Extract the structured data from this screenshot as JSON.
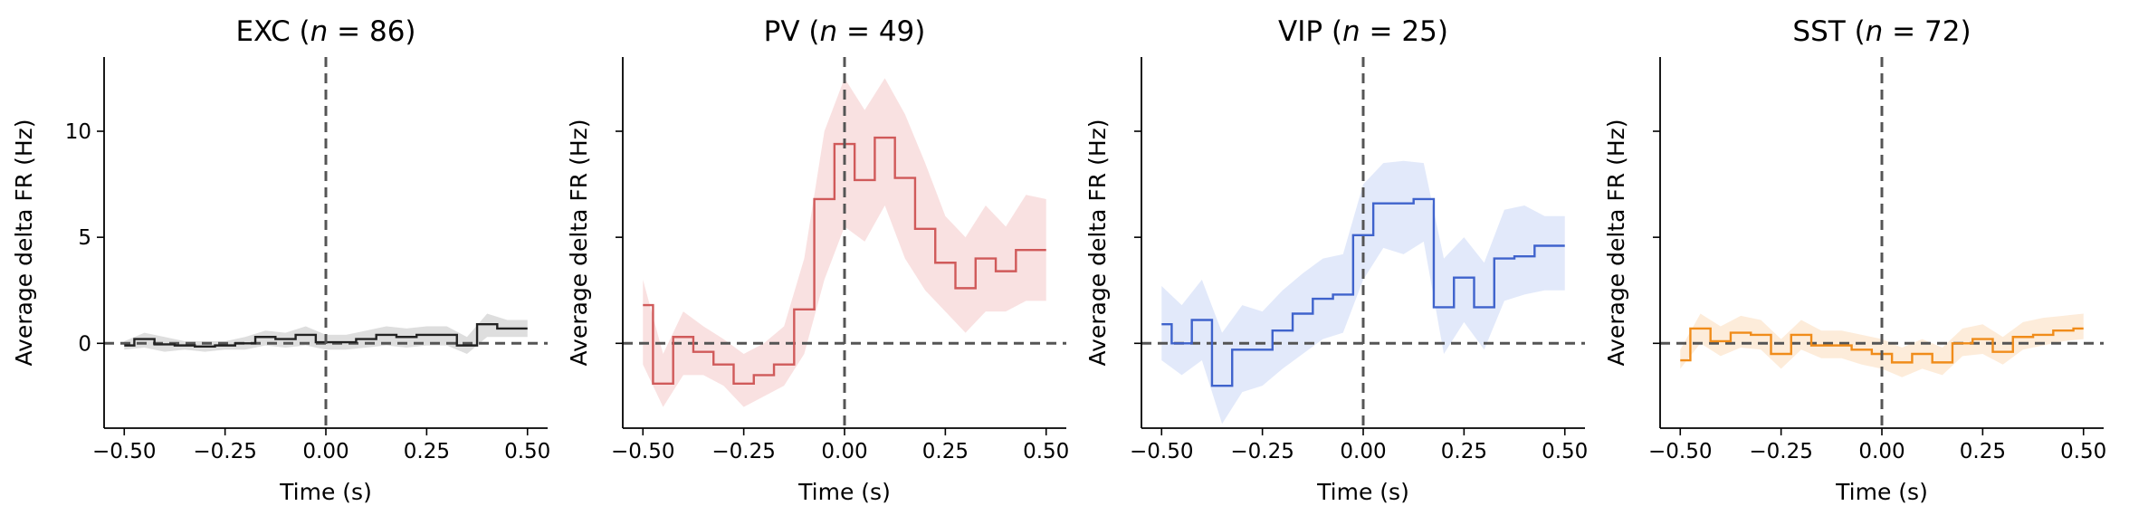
{
  "chart_data": [
    {
      "type": "line",
      "title_prefix": "EXC (",
      "title_var": "n",
      "title_eq": " = 86)",
      "xlabel": "Time (s)",
      "ylabel": "Average delta FR (Hz)",
      "xlim": [
        -0.55,
        0.55
      ],
      "ylim": [
        -4,
        13.5
      ],
      "xticks": [
        -0.5,
        -0.25,
        0.0,
        0.25,
        0.5
      ],
      "xtick_labels": [
        "−0.50",
        "−0.25",
        "0.00",
        "0.25",
        "0.50"
      ],
      "yticks": [
        0,
        5,
        10
      ],
      "ytick_labels": [
        "0",
        "5",
        "10"
      ],
      "show_ytick_labels": true,
      "color": "#222222",
      "fill_color": "#d8d8d8",
      "x": [
        -0.5,
        -0.45,
        -0.4,
        -0.35,
        -0.3,
        -0.25,
        -0.2,
        -0.15,
        -0.1,
        -0.05,
        0.0,
        0.05,
        0.1,
        0.15,
        0.2,
        0.25,
        0.3,
        0.35,
        0.4,
        0.45,
        0.5
      ],
      "y": [
        -0.1,
        0.2,
        -0.05,
        -0.1,
        -0.15,
        -0.1,
        0.0,
        0.3,
        0.2,
        0.4,
        0.05,
        0.05,
        0.2,
        0.4,
        0.3,
        0.4,
        0.4,
        -0.1,
        0.9,
        0.7,
        0.7
      ],
      "lower": [
        -0.3,
        -0.2,
        -0.4,
        -0.3,
        -0.4,
        -0.3,
        -0.3,
        -0.1,
        -0.2,
        -0.1,
        -0.3,
        -0.3,
        -0.2,
        -0.1,
        -0.2,
        -0.1,
        -0.1,
        -0.5,
        0.3,
        0.3,
        0.3
      ],
      "upper": [
        0.1,
        0.5,
        0.3,
        0.1,
        0.1,
        0.1,
        0.3,
        0.6,
        0.5,
        0.8,
        0.4,
        0.4,
        0.6,
        0.8,
        0.7,
        0.8,
        0.8,
        0.3,
        1.4,
        1.1,
        1.1
      ]
    },
    {
      "type": "line",
      "title_prefix": "PV (",
      "title_var": "n",
      "title_eq": " = 49)",
      "xlabel": "Time (s)",
      "ylabel": "Average delta FR (Hz)",
      "xlim": [
        -0.55,
        0.55
      ],
      "ylim": [
        -4,
        13.5
      ],
      "xticks": [
        -0.5,
        -0.25,
        0.0,
        0.25,
        0.5
      ],
      "xtick_labels": [
        "−0.50",
        "−0.25",
        "0.00",
        "0.25",
        "0.50"
      ],
      "yticks": [
        0,
        5,
        10
      ],
      "ytick_labels": [
        "0",
        "5",
        "10"
      ],
      "show_ytick_labels": false,
      "color": "#d05a5a",
      "fill_color": "#f8dcdc",
      "x": [
        -0.5,
        -0.45,
        -0.4,
        -0.35,
        -0.3,
        -0.25,
        -0.2,
        -0.15,
        -0.1,
        -0.05,
        0.0,
        0.05,
        0.1,
        0.15,
        0.2,
        0.25,
        0.3,
        0.35,
        0.4,
        0.45,
        0.5
      ],
      "y": [
        1.8,
        -1.9,
        0.3,
        -0.4,
        -1.0,
        -1.9,
        -1.5,
        -1.0,
        1.6,
        6.8,
        9.4,
        7.7,
        9.7,
        7.8,
        5.4,
        3.8,
        2.6,
        4.0,
        3.4,
        4.4,
        4.4
      ],
      "lower": [
        -1.0,
        -3.0,
        -1.5,
        -1.5,
        -2.0,
        -3.0,
        -2.5,
        -2.0,
        -0.5,
        3.0,
        5.5,
        4.8,
        6.5,
        4.0,
        2.5,
        1.5,
        0.5,
        1.5,
        1.5,
        2.0,
        2.0
      ],
      "upper": [
        3.0,
        -0.5,
        1.5,
        0.8,
        0.2,
        -0.5,
        0.0,
        0.8,
        4.0,
        10.0,
        12.5,
        11.0,
        12.5,
        10.8,
        8.5,
        6.0,
        5.0,
        6.5,
        5.5,
        7.0,
        6.8
      ]
    },
    {
      "type": "line",
      "title_prefix": "VIP (",
      "title_var": "n",
      "title_eq": " = 25)",
      "xlabel": "Time (s)",
      "ylabel": "Average delta FR (Hz)",
      "xlim": [
        -0.55,
        0.55
      ],
      "ylim": [
        -4,
        13.5
      ],
      "xticks": [
        -0.5,
        -0.25,
        0.0,
        0.25,
        0.5
      ],
      "xtick_labels": [
        "−0.50",
        "−0.25",
        "0.00",
        "0.25",
        "0.50"
      ],
      "yticks": [
        0,
        5,
        10
      ],
      "ytick_labels": [
        "0",
        "5",
        "10"
      ],
      "show_ytick_labels": false,
      "color": "#3f63cc",
      "fill_color": "#dde5f9",
      "x": [
        -0.5,
        -0.45,
        -0.4,
        -0.35,
        -0.3,
        -0.25,
        -0.2,
        -0.15,
        -0.1,
        -0.05,
        0.0,
        0.05,
        0.1,
        0.15,
        0.2,
        0.25,
        0.3,
        0.35,
        0.4,
        0.45,
        0.5
      ],
      "y": [
        0.9,
        0.0,
        1.1,
        -2.0,
        -0.3,
        -0.3,
        0.6,
        1.4,
        2.1,
        2.3,
        5.1,
        6.6,
        6.6,
        6.8,
        1.7,
        3.1,
        1.7,
        4.0,
        4.1,
        4.6,
        4.6
      ],
      "lower": [
        -0.8,
        -1.5,
        -0.8,
        -3.8,
        -2.3,
        -2.0,
        -1.2,
        -0.5,
        0.2,
        0.5,
        3.0,
        4.5,
        4.2,
        4.8,
        -0.5,
        1.0,
        -0.3,
        2.0,
        2.3,
        2.5,
        2.5
      ],
      "upper": [
        2.7,
        1.8,
        3.0,
        0.5,
        1.8,
        1.5,
        2.5,
        3.3,
        4.0,
        4.2,
        7.5,
        8.5,
        8.6,
        8.5,
        4.0,
        5.0,
        3.8,
        6.3,
        6.5,
        6.0,
        6.0
      ]
    },
    {
      "type": "line",
      "title_prefix": "SST (",
      "title_var": "n",
      "title_eq": " = 72)",
      "xlabel": "Time (s)",
      "ylabel": "Average delta FR (Hz)",
      "xlim": [
        -0.55,
        0.55
      ],
      "ylim": [
        -4,
        13.5
      ],
      "xticks": [
        -0.5,
        -0.25,
        0.0,
        0.25,
        0.5
      ],
      "xtick_labels": [
        "−0.50",
        "−0.25",
        "0.00",
        "0.25",
        "0.50"
      ],
      "yticks": [
        0,
        5,
        10
      ],
      "ytick_labels": [
        "0",
        "5",
        "10"
      ],
      "show_ytick_labels": false,
      "color": "#f08c1a",
      "fill_color": "#fde9d3",
      "x": [
        -0.5,
        -0.45,
        -0.4,
        -0.35,
        -0.3,
        -0.25,
        -0.2,
        -0.15,
        -0.1,
        -0.05,
        0.0,
        0.05,
        0.1,
        0.15,
        0.2,
        0.25,
        0.3,
        0.35,
        0.4,
        0.45,
        0.5
      ],
      "y": [
        -0.8,
        0.7,
        0.1,
        0.5,
        0.4,
        -0.5,
        0.4,
        -0.1,
        -0.1,
        -0.3,
        -0.5,
        -0.9,
        -0.5,
        -0.9,
        0.0,
        0.2,
        -0.4,
        0.3,
        0.4,
        0.6,
        0.7
      ],
      "lower": [
        -1.2,
        0.0,
        -0.6,
        -0.2,
        -0.3,
        -1.2,
        -0.3,
        -0.7,
        -0.7,
        -1.0,
        -1.2,
        -1.6,
        -1.2,
        -1.5,
        -0.6,
        -0.5,
        -1.0,
        -0.3,
        -0.1,
        0.1,
        0.2
      ],
      "upper": [
        -0.3,
        1.4,
        0.8,
        1.3,
        1.1,
        0.2,
        1.1,
        0.6,
        0.6,
        0.4,
        0.2,
        -0.2,
        0.2,
        -0.2,
        0.7,
        0.9,
        0.3,
        1.0,
        1.2,
        1.3,
        1.4
      ]
    }
  ]
}
